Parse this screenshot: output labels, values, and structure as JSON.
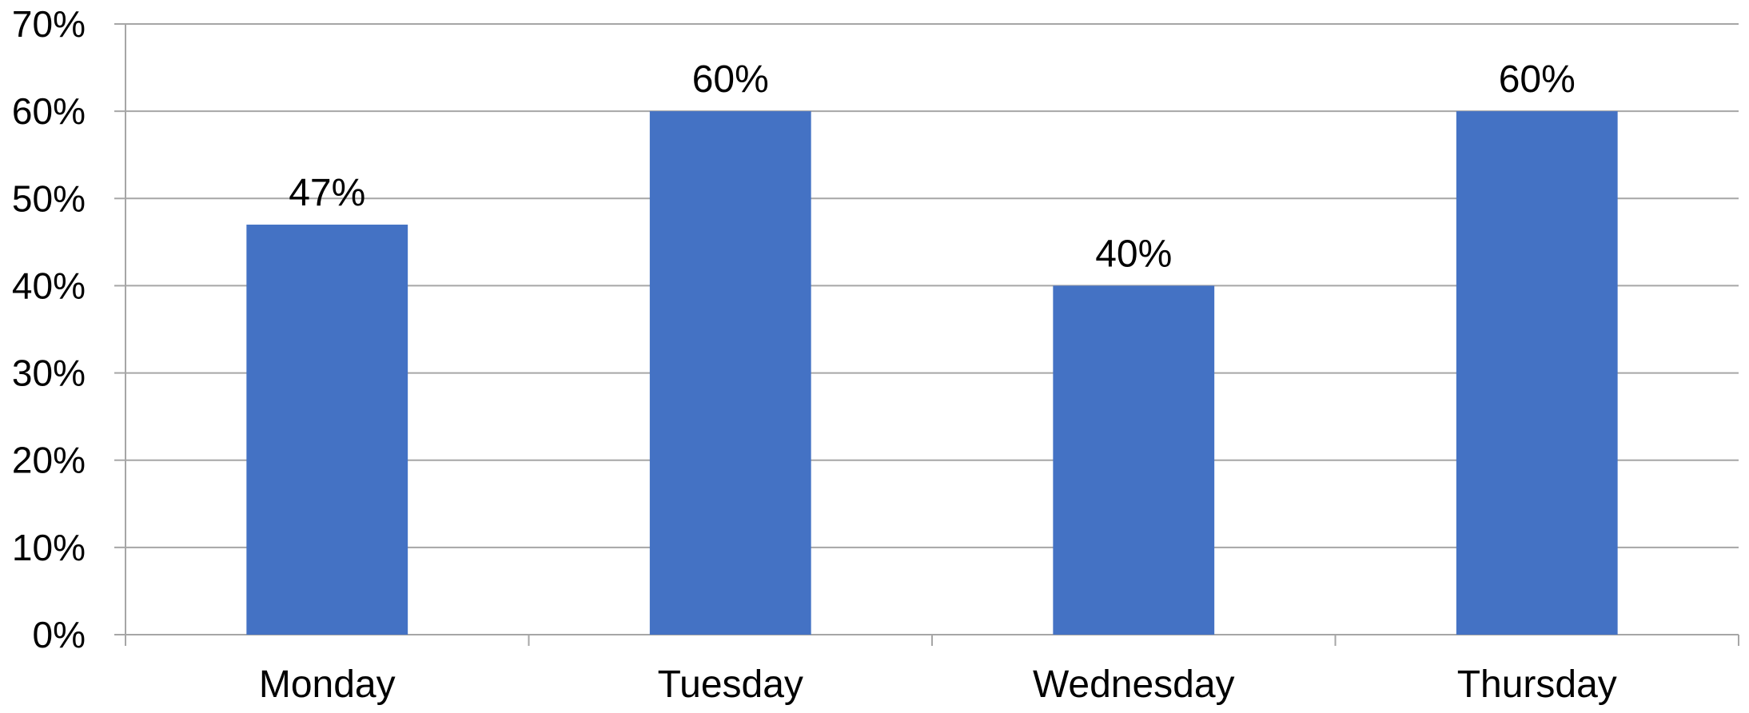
{
  "chart_data": {
    "type": "bar",
    "categories": [
      "Monday",
      "Tuesday",
      "Wednesday",
      "Thursday"
    ],
    "series": [
      {
        "values": [
          47,
          60,
          40,
          60
        ]
      }
    ],
    "data_labels": [
      "47%",
      "60%",
      "40%",
      "60%"
    ],
    "y_tick_labels": [
      "0%",
      "10%",
      "20%",
      "30%",
      "40%",
      "50%",
      "60%",
      "70%"
    ],
    "ylim": [
      0,
      70
    ],
    "y_major_unit": 10,
    "title": "",
    "xlabel": "",
    "ylabel": "",
    "grid": true,
    "legend": "none",
    "colors": {
      "bar": "#4472C4",
      "grid": "#A6A6A6",
      "axis": "#A6A6A6",
      "text": "#000000"
    }
  }
}
